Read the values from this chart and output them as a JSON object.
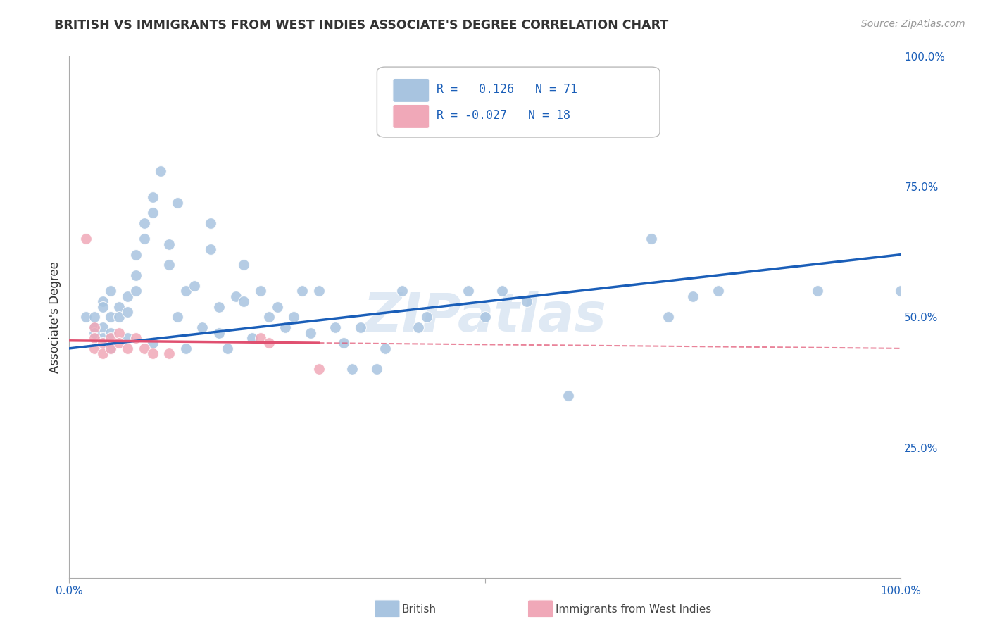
{
  "title": "BRITISH VS IMMIGRANTS FROM WEST INDIES ASSOCIATE'S DEGREE CORRELATION CHART",
  "source_text": "Source: ZipAtlas.com",
  "ylabel": "Associate's Degree",
  "xlim": [
    0,
    1.0
  ],
  "ylim": [
    0,
    1.0
  ],
  "y_tick_labels": [
    "25.0%",
    "50.0%",
    "75.0%",
    "100.0%"
  ],
  "y_tick_positions": [
    0.25,
    0.5,
    0.75,
    1.0
  ],
  "r_british": 0.126,
  "n_british": 71,
  "r_westindies": -0.027,
  "n_westindies": 18,
  "british_color": "#a8c4e0",
  "westindies_color": "#f0a8b8",
  "british_line_color": "#1a5eb8",
  "westindies_line_color": "#e05070",
  "watermark": "ZIPatlas",
  "background_color": "#ffffff",
  "grid_color": "#d0d8e8",
  "british_x": [
    0.02,
    0.03,
    0.03,
    0.03,
    0.04,
    0.04,
    0.04,
    0.04,
    0.05,
    0.05,
    0.05,
    0.05,
    0.06,
    0.06,
    0.07,
    0.07,
    0.07,
    0.08,
    0.08,
    0.08,
    0.09,
    0.09,
    0.1,
    0.1,
    0.1,
    0.11,
    0.12,
    0.12,
    0.13,
    0.13,
    0.14,
    0.14,
    0.15,
    0.16,
    0.17,
    0.17,
    0.18,
    0.18,
    0.19,
    0.2,
    0.21,
    0.21,
    0.22,
    0.23,
    0.24,
    0.25,
    0.26,
    0.27,
    0.28,
    0.29,
    0.3,
    0.32,
    0.33,
    0.34,
    0.35,
    0.37,
    0.38,
    0.4,
    0.42,
    0.43,
    0.48,
    0.5,
    0.52,
    0.55,
    0.6,
    0.7,
    0.72,
    0.75,
    0.78,
    0.9,
    1.0
  ],
  "british_y": [
    0.5,
    0.5,
    0.48,
    0.47,
    0.53,
    0.52,
    0.48,
    0.46,
    0.55,
    0.5,
    0.47,
    0.44,
    0.52,
    0.5,
    0.54,
    0.51,
    0.46,
    0.62,
    0.58,
    0.55,
    0.68,
    0.65,
    0.73,
    0.7,
    0.45,
    0.78,
    0.64,
    0.6,
    0.72,
    0.5,
    0.55,
    0.44,
    0.56,
    0.48,
    0.68,
    0.63,
    0.52,
    0.47,
    0.44,
    0.54,
    0.6,
    0.53,
    0.46,
    0.55,
    0.5,
    0.52,
    0.48,
    0.5,
    0.55,
    0.47,
    0.55,
    0.48,
    0.45,
    0.4,
    0.48,
    0.4,
    0.44,
    0.55,
    0.48,
    0.5,
    0.55,
    0.5,
    0.55,
    0.53,
    0.35,
    0.65,
    0.5,
    0.54,
    0.55,
    0.55,
    0.55
  ],
  "westindies_x": [
    0.02,
    0.03,
    0.03,
    0.03,
    0.04,
    0.04,
    0.05,
    0.05,
    0.06,
    0.06,
    0.07,
    0.08,
    0.09,
    0.1,
    0.12,
    0.23,
    0.24,
    0.3
  ],
  "westindies_y": [
    0.65,
    0.48,
    0.46,
    0.44,
    0.45,
    0.43,
    0.46,
    0.44,
    0.47,
    0.45,
    0.44,
    0.46,
    0.44,
    0.43,
    0.43,
    0.46,
    0.45,
    0.4
  ]
}
